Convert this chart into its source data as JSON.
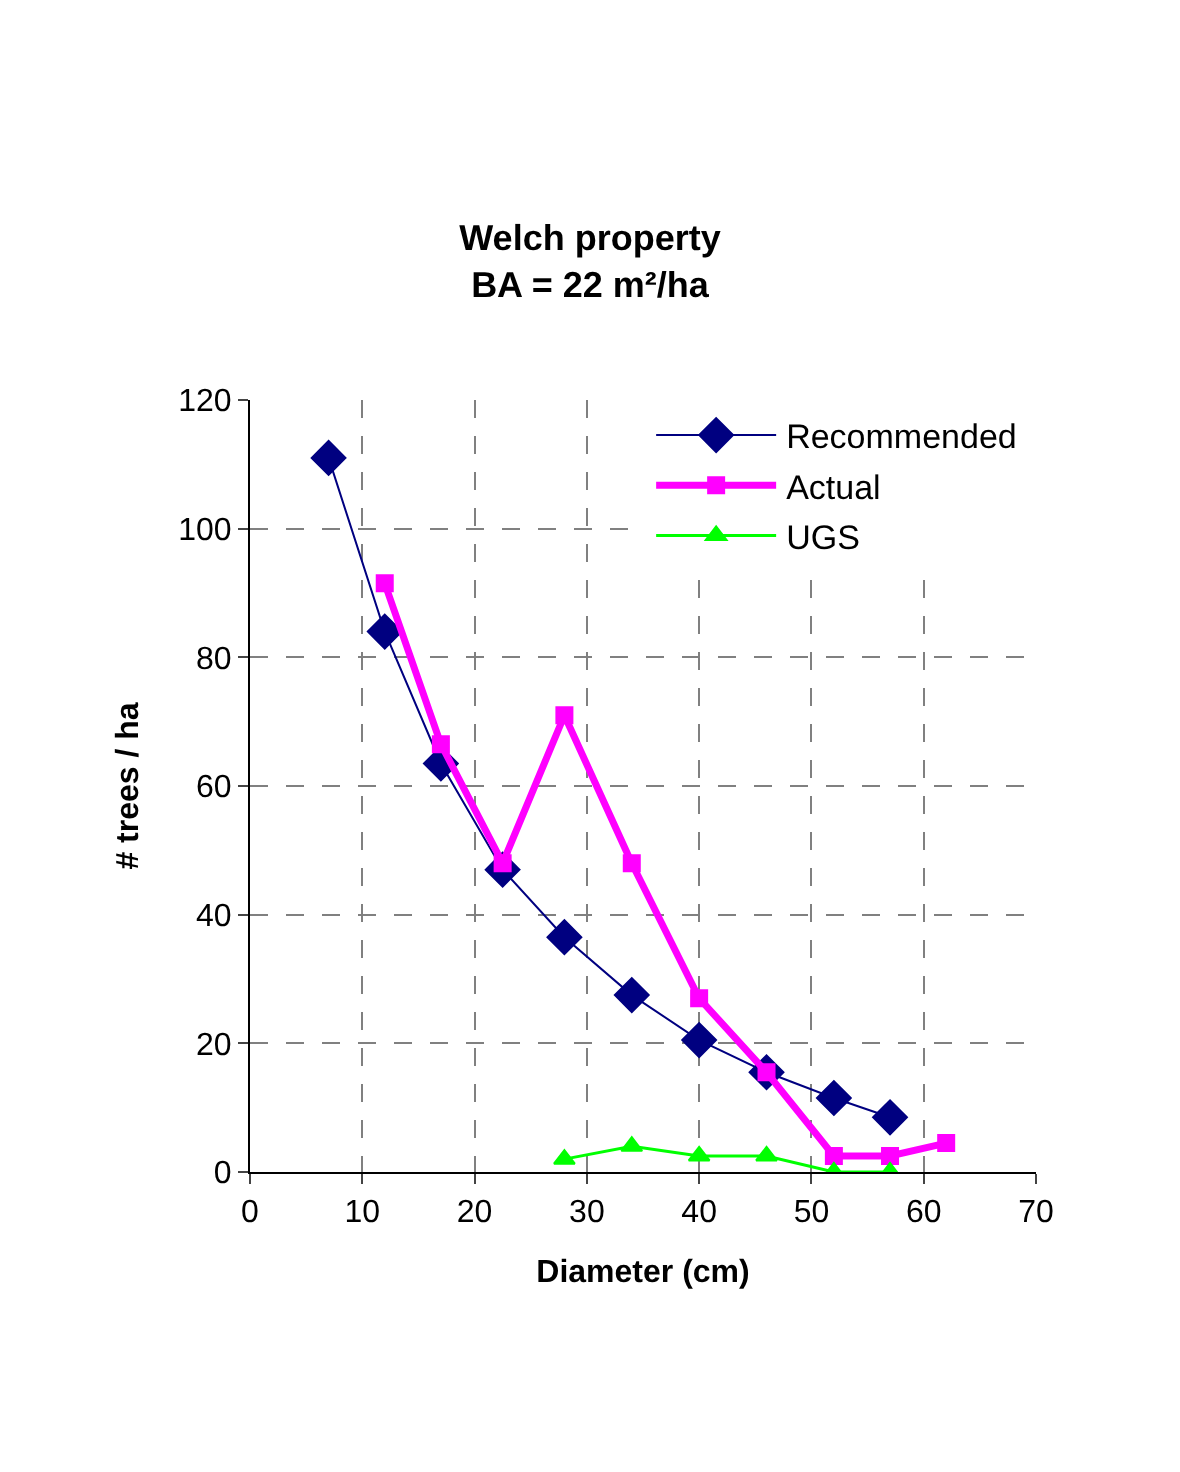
{
  "chart_data": {
    "type": "line",
    "title": "Welch property\nBA = 22 m²/ha",
    "xlabel": "Diameter (cm)",
    "ylabel": "# trees / ha",
    "xlim": [
      0,
      70
    ],
    "xticks": [
      0,
      10,
      20,
      30,
      40,
      50,
      60,
      70
    ],
    "ylim": [
      0,
      120
    ],
    "yticks": [
      0,
      20,
      40,
      60,
      80,
      100,
      120
    ],
    "grid": true,
    "legend": "top right",
    "series": [
      {
        "name": "Recommended",
        "color": "#000080",
        "marker": "diamond",
        "x": [
          7,
          12,
          17,
          22.5,
          28,
          34,
          40,
          46,
          52,
          57
        ],
        "values": [
          111,
          84,
          63.5,
          47,
          36.5,
          27.5,
          20.5,
          15.5,
          11.5,
          8.5
        ]
      },
      {
        "name": "Actual",
        "color": "#ff00ff",
        "marker": "square",
        "x": [
          12,
          17,
          22.5,
          28,
          34,
          40,
          46,
          52,
          57,
          62
        ],
        "values": [
          91.5,
          66.5,
          48,
          71,
          48,
          27,
          15.5,
          2.5,
          2.5,
          4.5
        ]
      },
      {
        "name": "UGS",
        "color": "#00ff00",
        "marker": "triangle",
        "x": [
          28,
          34,
          40,
          46,
          52,
          57
        ],
        "values": [
          2,
          4,
          2.5,
          2.5,
          0,
          0
        ]
      }
    ]
  }
}
